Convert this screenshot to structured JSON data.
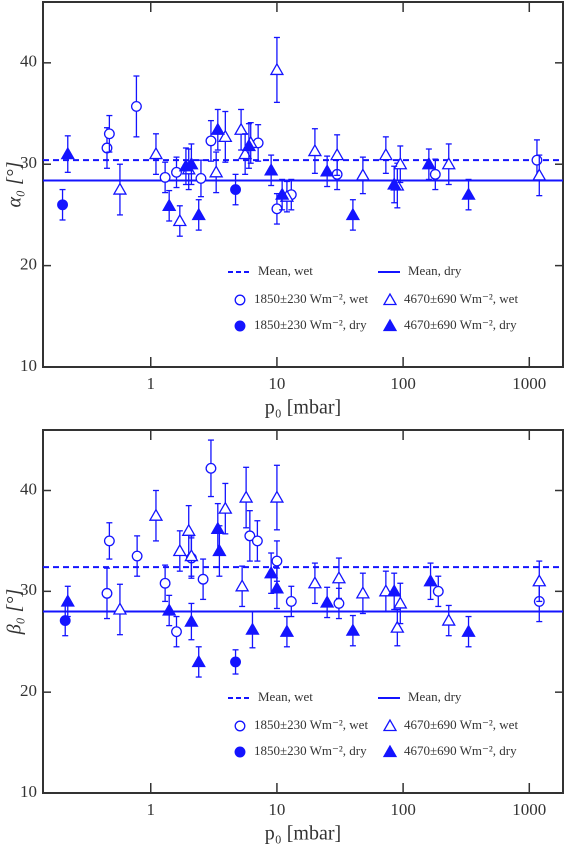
{
  "chart_data": [
    {
      "type": "scatter",
      "ylabel": "α₀ [°]",
      "xlabel": "p₀ [mbar]",
      "xscale": "log",
      "xlim": [
        0.14,
        1850
      ],
      "xticks": [
        1,
        10,
        100,
        1000
      ],
      "ylim": [
        10,
        46
      ],
      "yticks": [
        10,
        20,
        30,
        40
      ],
      "legend": "lower right",
      "lines": [
        {
          "name": "Mean, wet",
          "value": 30.4,
          "style": "dashed",
          "color": "#1414ff"
        },
        {
          "name": "Mean, dry",
          "value": 28.4,
          "style": "solid",
          "color": "#1414ff"
        }
      ],
      "series": [
        {
          "name": "1850±230 Wm⁻², wet",
          "marker": "circle",
          "filled": false,
          "color": "#1414ff",
          "x": [
            0.45,
            0.47,
            0.77,
            1.3,
            1.6,
            2.5,
            3.0,
            7.1,
            10,
            13,
            30,
            180,
            1150
          ],
          "y": [
            31.6,
            33.0,
            35.7,
            28.7,
            29.2,
            28.6,
            32.3,
            32.1,
            25.6,
            27.0,
            29.0,
            29.0,
            30.4
          ],
          "yerr": [
            2.0,
            1.8,
            3.0,
            1.5,
            1.5,
            1.8,
            2.0,
            1.8,
            1.5,
            1.5,
            1.5,
            1.5,
            2.0
          ]
        },
        {
          "name": "1850±230 Wm⁻², dry",
          "marker": "circle",
          "filled": true,
          "color": "#1414ff",
          "x": [
            0.2,
            4.7
          ],
          "y": [
            26.0,
            27.5
          ],
          "yerr": [
            1.5,
            1.5
          ]
        },
        {
          "name": "4670±690 Wm⁻², wet",
          "marker": "triangle",
          "filled": false,
          "color": "#1414ff",
          "x": [
            0.57,
            1.1,
            1.7,
            2.0,
            3.3,
            3.9,
            5.2,
            5.6,
            6.2,
            10,
            12,
            20,
            30,
            48,
            73,
            90,
            95,
            230,
            1200
          ],
          "y": [
            27.5,
            31.0,
            24.4,
            29.5,
            29.2,
            32.7,
            33.4,
            31.0,
            32.1,
            39.3,
            26.8,
            31.3,
            30.9,
            28.9,
            30.9,
            27.9,
            30.0,
            30.0,
            28.9
          ],
          "yerr": [
            2.5,
            2.0,
            1.5,
            2.0,
            2.0,
            2.5,
            2.0,
            2.0,
            2.0,
            3.2,
            1.5,
            2.2,
            2.0,
            1.8,
            1.8,
            2.2,
            1.8,
            2.0,
            2.0
          ]
        },
        {
          "name": "4670±690 Wm⁻², dry",
          "marker": "triangle",
          "filled": true,
          "color": "#1414ff",
          "x": [
            0.22,
            1.4,
            1.9,
            2.1,
            2.4,
            3.4,
            6.0,
            9.0,
            11,
            25,
            40,
            85,
            160,
            330
          ],
          "y": [
            31.0,
            25.9,
            29.8,
            30.0,
            25.0,
            33.4,
            31.8,
            29.4,
            27.0,
            29.3,
            25.0,
            28.0,
            30.0,
            27.0
          ],
          "yerr": [
            1.8,
            1.5,
            1.8,
            2.0,
            1.5,
            2.0,
            2.2,
            1.5,
            1.5,
            1.5,
            1.5,
            1.8,
            1.5,
            1.5
          ]
        }
      ]
    },
    {
      "type": "scatter",
      "ylabel": "β₀ [°]",
      "xlabel": "p₀ [mbar]",
      "xscale": "log",
      "xlim": [
        0.14,
        1850
      ],
      "xticks": [
        1,
        10,
        100,
        1000
      ],
      "ylim": [
        10,
        46
      ],
      "yticks": [
        10,
        20,
        30,
        40
      ],
      "legend": "lower right",
      "lines": [
        {
          "name": "Mean, wet",
          "value": 32.4,
          "style": "dashed",
          "color": "#1414ff"
        },
        {
          "name": "Mean, dry",
          "value": 28.0,
          "style": "solid",
          "color": "#1414ff"
        }
      ],
      "series": [
        {
          "name": "1850±230 Wm⁻², wet",
          "marker": "circle",
          "filled": false,
          "color": "#1414ff",
          "x": [
            0.45,
            0.47,
            0.78,
            1.3,
            1.6,
            2.1,
            2.6,
            3.0,
            6.1,
            7.0,
            10,
            13,
            31,
            190,
            1200
          ],
          "y": [
            29.8,
            35.0,
            33.5,
            30.8,
            26.0,
            33.3,
            31.2,
            42.2,
            35.5,
            35.0,
            33.0,
            29.0,
            28.8,
            30.0,
            29.0
          ],
          "yerr": [
            2.5,
            1.8,
            2.0,
            1.8,
            1.5,
            2.0,
            2.0,
            2.8,
            2.5,
            2.0,
            2.0,
            1.5,
            1.5,
            1.5,
            2.0
          ]
        },
        {
          "name": "1850±230 Wm⁻², dry",
          "marker": "circle",
          "filled": true,
          "color": "#1414ff",
          "x": [
            0.21,
            4.7
          ],
          "y": [
            27.1,
            23.0
          ],
          "yerr": [
            1.5,
            1.2
          ]
        },
        {
          "name": "4670±690 Wm⁻², wet",
          "marker": "triangle",
          "filled": false,
          "color": "#1414ff",
          "x": [
            0.57,
            1.1,
            1.7,
            2.0,
            2.1,
            3.9,
            5.3,
            5.7,
            10,
            20,
            31,
            48,
            73,
            90,
            95,
            230,
            1200
          ],
          "y": [
            28.2,
            37.5,
            34.0,
            36.0,
            33.5,
            38.2,
            30.5,
            39.3,
            39.3,
            30.8,
            31.3,
            29.8,
            30.0,
            26.4,
            28.8,
            27.1,
            31.0
          ],
          "yerr": [
            2.5,
            2.5,
            2.0,
            2.5,
            2.0,
            2.5,
            2.0,
            3.0,
            3.2,
            2.0,
            2.0,
            2.0,
            2.0,
            1.8,
            2.0,
            1.5,
            2.0
          ]
        },
        {
          "name": "4670±690 Wm⁻², dry",
          "marker": "triangle",
          "filled": true,
          "color": "#1414ff",
          "x": [
            0.22,
            1.4,
            2.1,
            2.4,
            3.4,
            3.5,
            6.4,
            9.0,
            10,
            12,
            25,
            40,
            85,
            165,
            330
          ],
          "y": [
            29.0,
            28.1,
            27.0,
            23.0,
            36.2,
            34.0,
            26.2,
            31.8,
            30.3,
            26.0,
            28.9,
            26.1,
            30.0,
            31.0,
            26.0
          ],
          "yerr": [
            1.5,
            1.5,
            1.8,
            1.5,
            2.5,
            2.5,
            1.8,
            2.0,
            2.0,
            1.5,
            1.5,
            1.5,
            1.8,
            1.8,
            1.5
          ]
        }
      ]
    }
  ]
}
